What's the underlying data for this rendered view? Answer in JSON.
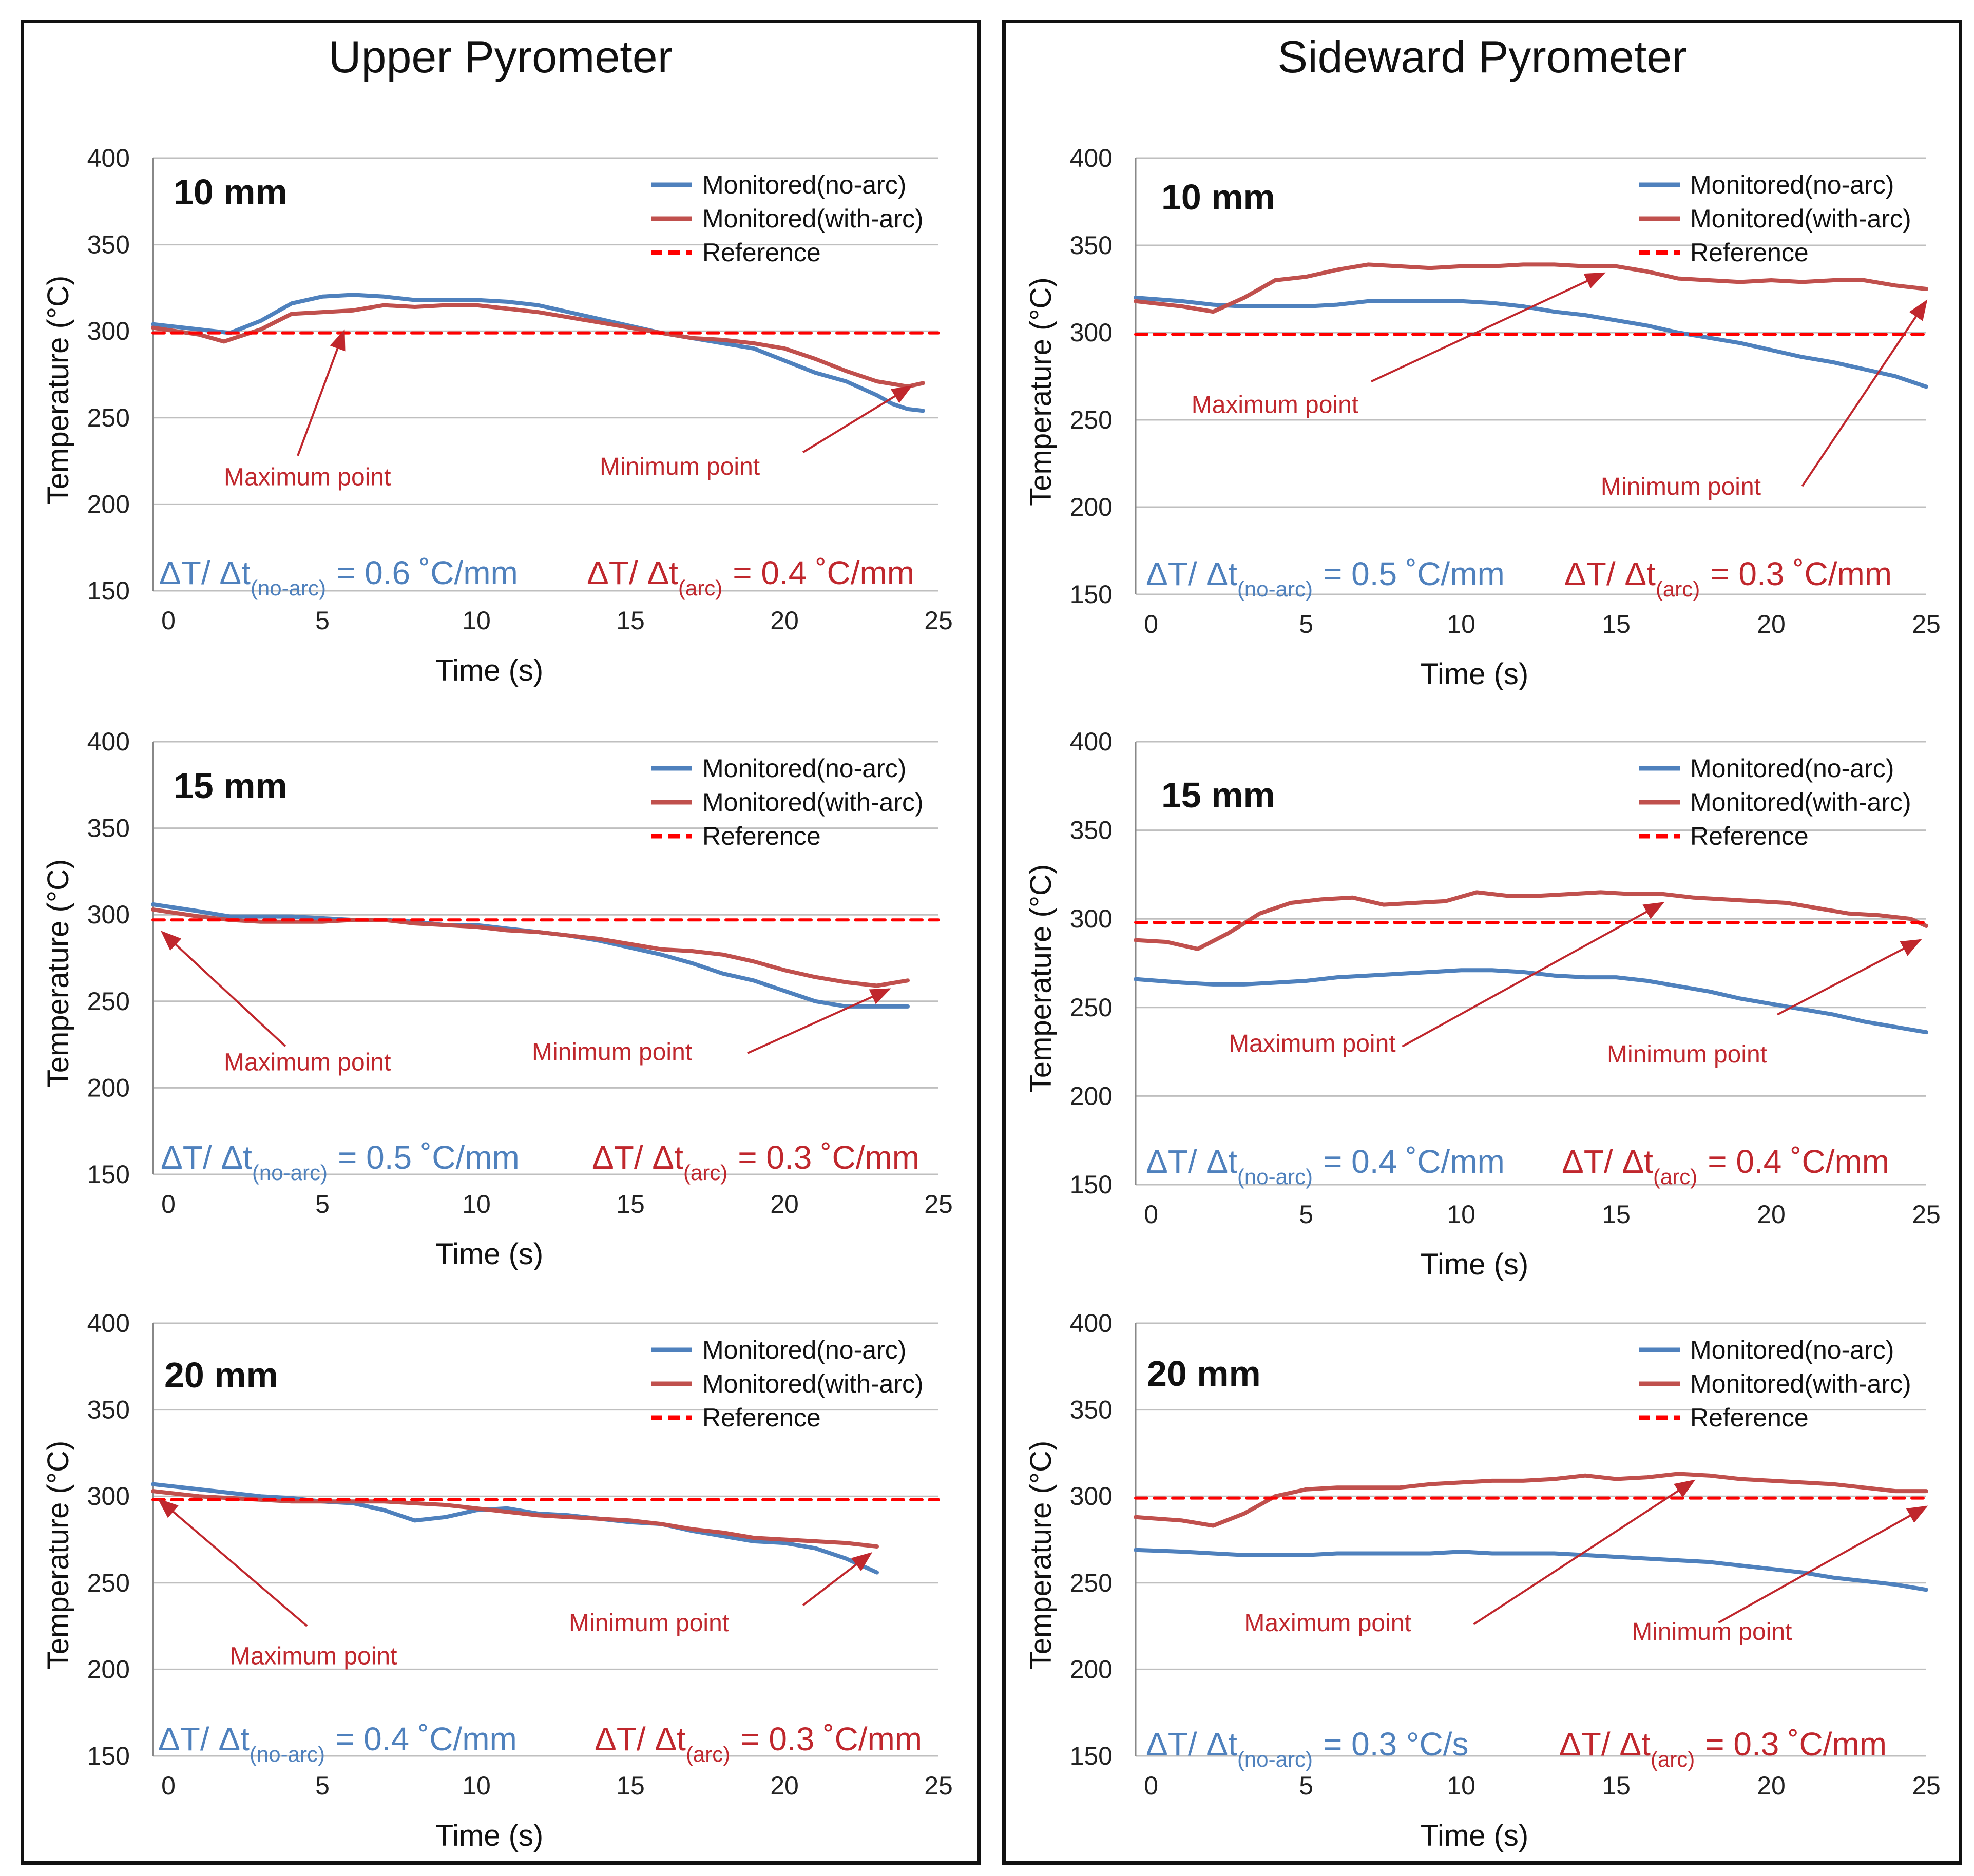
{
  "colors": {
    "no_arc": "#4f81bd",
    "with_arc": "#c0504d",
    "reference": "#ff0000",
    "annotation": "#c0272d",
    "grid": "#bfbfbf"
  },
  "panel_titles": {
    "left": "Upper Pyrometer",
    "right": "Sideward Pyrometer"
  },
  "legend": {
    "no_arc": "Monitored(no-arc)",
    "with_arc": "Monitored(with-arc)",
    "reference": "Reference"
  },
  "annotations": {
    "max": "Maximum point",
    "min": "Minimum point"
  },
  "gradient": {
    "no_arc_prefix": "ΔT/ Δt",
    "no_arc_sub": "(no-arc)",
    "arc_prefix": "ΔT/ Δt",
    "arc_sub": "(arc)"
  },
  "chart_data": [
    {
      "type": "line",
      "panel": "Upper Pyrometer",
      "title": "10 mm",
      "xlabel": "Time (s)",
      "ylabel": "Temperature (°C)",
      "xlim": [
        -0.5,
        25
      ],
      "ylim": [
        150,
        400
      ],
      "x_ticks": [
        0,
        5,
        10,
        15,
        20,
        25
      ],
      "y_ticks": [
        150,
        200,
        250,
        300,
        350,
        400
      ],
      "grid": true,
      "legend_position": "top-right",
      "gradient_no_arc_value": "= 0.6 ˚C/mm",
      "gradient_arc_value": "= 0.4 ˚C/mm",
      "series": [
        {
          "name": "Monitored(no-arc)",
          "x": [
            -0.5,
            1,
            2,
            3,
            4,
            5,
            6,
            7,
            8,
            9,
            10,
            11,
            12,
            13,
            14,
            15,
            16,
            17,
            18,
            19,
            20,
            21,
            22,
            23,
            23.5,
            24,
            24.5
          ],
          "y": [
            304,
            301,
            299,
            306,
            316,
            320,
            321,
            320,
            318,
            318,
            318,
            317,
            315,
            311,
            307,
            303,
            299,
            296,
            293,
            290,
            283,
            276,
            271,
            263,
            258,
            255,
            254
          ]
        },
        {
          "name": "Monitored(with-arc)",
          "x": [
            -0.5,
            1,
            1.8,
            3,
            4,
            5,
            6,
            7,
            8,
            9,
            10,
            11,
            12,
            13,
            14,
            15,
            16,
            17,
            18,
            19,
            20,
            21,
            22,
            23,
            24,
            24.5
          ],
          "y": [
            302,
            298,
            294,
            301,
            310,
            311,
            312,
            315,
            314,
            315,
            315,
            313,
            311,
            308,
            305,
            302,
            299,
            296,
            295,
            293,
            290,
            284,
            277,
            271,
            268,
            270
          ]
        },
        {
          "name": "Reference",
          "x": [
            -0.5,
            25
          ],
          "y": [
            299,
            299
          ]
        }
      ]
    },
    {
      "type": "line",
      "panel": "Upper Pyrometer",
      "title": "15 mm",
      "xlabel": "Time (s)",
      "ylabel": "Temperature (°C)",
      "xlim": [
        -0.5,
        25
      ],
      "ylim": [
        150,
        400
      ],
      "x_ticks": [
        0,
        5,
        10,
        15,
        20,
        25
      ],
      "y_ticks": [
        150,
        200,
        250,
        300,
        350,
        400
      ],
      "grid": true,
      "legend_position": "top-right",
      "gradient_no_arc_value": "= 0.5 ˚C/mm",
      "gradient_arc_value": "= 0.3 ˚C/mm",
      "series": [
        {
          "name": "Monitored(no-arc)",
          "x": [
            -0.5,
            1,
            2,
            3,
            4,
            5,
            6,
            7,
            8,
            9,
            10,
            11,
            12,
            13,
            14,
            15,
            16,
            17,
            18,
            19,
            20,
            21,
            22,
            23,
            24
          ],
          "y": [
            306,
            302,
            299,
            299,
            299,
            298,
            297,
            297,
            296,
            294,
            294,
            292,
            290,
            288,
            285,
            281,
            277,
            272,
            266,
            262,
            256,
            250,
            247,
            247,
            247
          ]
        },
        {
          "name": "Monitored(with-arc)",
          "x": [
            -0.5,
            1,
            2,
            3,
            4,
            5,
            6,
            7,
            8,
            9,
            10,
            11,
            12,
            13,
            14,
            15,
            16,
            17,
            18,
            19,
            20,
            21,
            22,
            23,
            24
          ],
          "y": [
            303,
            299,
            297,
            296,
            296,
            296,
            297,
            297,
            295,
            294,
            293,
            291,
            290,
            288,
            286,
            283,
            280,
            279,
            277,
            273,
            268,
            264,
            261,
            259,
            262
          ]
        },
        {
          "name": "Reference",
          "x": [
            -0.5,
            25
          ],
          "y": [
            297,
            297
          ]
        }
      ]
    },
    {
      "type": "line",
      "panel": "Upper Pyrometer",
      "title": "20 mm",
      "xlabel": "Time (s)",
      "ylabel": "Temperature (°C)",
      "xlim": [
        -0.5,
        25
      ],
      "ylim": [
        150,
        400
      ],
      "x_ticks": [
        0,
        5,
        10,
        15,
        20,
        25
      ],
      "y_ticks": [
        150,
        200,
        250,
        300,
        350,
        400
      ],
      "grid": true,
      "legend_position": "top-right",
      "gradient_no_arc_value": "= 0.4 ˚C/mm",
      "gradient_arc_value": "= 0.3 ˚C/mm",
      "series": [
        {
          "name": "Monitored(no-arc)",
          "x": [
            -0.5,
            1,
            2,
            3,
            4,
            5,
            6,
            7,
            8,
            9,
            10,
            11,
            12,
            13,
            14,
            15,
            16,
            17,
            18,
            19,
            20,
            21,
            22,
            23
          ],
          "y": [
            307,
            304,
            302,
            300,
            299,
            297,
            296,
            292,
            286,
            288,
            292,
            293,
            290,
            289,
            287,
            285,
            284,
            280,
            277,
            274,
            273,
            270,
            264,
            256
          ]
        },
        {
          "name": "Monitored(with-arc)",
          "x": [
            -0.5,
            1,
            2,
            3,
            4,
            5,
            6,
            7,
            8,
            9,
            10,
            11,
            12,
            13,
            14,
            15,
            16,
            17,
            18,
            19,
            20,
            21,
            22,
            23
          ],
          "y": [
            303,
            300,
            299,
            298,
            297,
            297,
            297,
            297,
            296,
            295,
            293,
            291,
            289,
            288,
            287,
            286,
            284,
            281,
            279,
            276,
            275,
            274,
            273,
            271
          ]
        },
        {
          "name": "Reference",
          "x": [
            -0.5,
            25
          ],
          "y": [
            298,
            298
          ]
        }
      ]
    },
    {
      "type": "line",
      "panel": "Sideward Pyrometer",
      "title": "10 mm",
      "xlabel": "Time (s)",
      "ylabel": "Temperature (°C)",
      "xlim": [
        -0.5,
        25
      ],
      "ylim": [
        150,
        400
      ],
      "x_ticks": [
        0,
        5,
        10,
        15,
        20,
        25
      ],
      "y_ticks": [
        150,
        200,
        250,
        300,
        350,
        400
      ],
      "grid": true,
      "legend_position": "top-right",
      "gradient_no_arc_value": "= 0.5 ˚C/mm",
      "gradient_arc_value": "= 0.3 ˚C/mm",
      "series": [
        {
          "name": "Monitored(no-arc)",
          "x": [
            -0.5,
            1,
            2,
            3,
            4,
            5,
            6,
            7,
            8,
            9,
            10,
            11,
            12,
            13,
            14,
            15,
            16,
            17,
            18,
            19,
            20,
            21,
            22,
            23,
            24,
            25
          ],
          "y": [
            320,
            318,
            316,
            315,
            315,
            315,
            316,
            318,
            318,
            318,
            318,
            317,
            315,
            312,
            310,
            307,
            304,
            300,
            297,
            294,
            290,
            286,
            283,
            279,
            275,
            269
          ]
        },
        {
          "name": "Monitored(with-arc)",
          "x": [
            -0.5,
            1,
            2,
            3,
            4,
            5,
            6,
            7,
            8,
            9,
            10,
            11,
            12,
            13,
            14,
            15,
            16,
            17,
            18,
            19,
            20,
            21,
            22,
            23,
            24,
            25
          ],
          "y": [
            318,
            315,
            312,
            320,
            330,
            332,
            336,
            339,
            338,
            337,
            338,
            338,
            339,
            339,
            338,
            338,
            335,
            331,
            330,
            329,
            330,
            329,
            330,
            330,
            327,
            325
          ]
        },
        {
          "name": "Reference",
          "x": [
            -0.5,
            25
          ],
          "y": [
            299,
            299
          ]
        }
      ]
    },
    {
      "type": "line",
      "panel": "Sideward Pyrometer",
      "title": "15 mm",
      "xlabel": "Time (s)",
      "ylabel": "Temperature (°C)",
      "xlim": [
        -0.5,
        25
      ],
      "ylim": [
        150,
        400
      ],
      "x_ticks": [
        0,
        5,
        10,
        15,
        20,
        25
      ],
      "y_ticks": [
        150,
        200,
        250,
        300,
        350,
        400
      ],
      "grid": true,
      "legend_position": "top-right",
      "gradient_no_arc_value": "= 0.4 ˚C/mm",
      "gradient_arc_value": "= 0.4 ˚C/mm",
      "series": [
        {
          "name": "Monitored(no-arc)",
          "x": [
            -0.5,
            1,
            2,
            3,
            4,
            5,
            6,
            7,
            8,
            9,
            10,
            11,
            12,
            13,
            14,
            15,
            16,
            17,
            18,
            19,
            20,
            21,
            22,
            23,
            24,
            25
          ],
          "y": [
            266,
            264,
            263,
            263,
            264,
            265,
            267,
            268,
            269,
            270,
            271,
            271,
            270,
            268,
            267,
            267,
            265,
            262,
            259,
            255,
            252,
            249,
            246,
            242,
            239,
            236
          ]
        },
        {
          "name": "Monitored(with-arc)",
          "x": [
            -0.5,
            0.5,
            1.5,
            2.5,
            3.5,
            4.5,
            5.5,
            6.5,
            7.5,
            8.5,
            9.5,
            10.5,
            11.5,
            12.5,
            13.5,
            14.5,
            15.5,
            16.5,
            17.5,
            18.5,
            19.5,
            20.5,
            21.5,
            22.5,
            23.5,
            24.5,
            25
          ],
          "y": [
            288,
            287,
            283,
            292,
            303,
            309,
            311,
            312,
            308,
            309,
            310,
            315,
            313,
            313,
            314,
            315,
            314,
            314,
            312,
            311,
            310,
            309,
            306,
            303,
            302,
            300,
            296
          ]
        },
        {
          "name": "Reference",
          "x": [
            -0.5,
            25
          ],
          "y": [
            298,
            298
          ]
        }
      ]
    },
    {
      "type": "line",
      "panel": "Sideward Pyrometer",
      "title": "20 mm",
      "xlabel": "Time (s)",
      "ylabel": "Temperature (°C)",
      "xlim": [
        -0.5,
        25
      ],
      "ylim": [
        150,
        400
      ],
      "x_ticks": [
        0,
        5,
        10,
        15,
        20,
        25
      ],
      "y_ticks": [
        150,
        200,
        250,
        300,
        350,
        400
      ],
      "grid": true,
      "legend_position": "top-right",
      "gradient_no_arc_value": "= 0.3 °C/s",
      "gradient_arc_value": "= 0.3 ˚C/mm",
      "series": [
        {
          "name": "Monitored(no-arc)",
          "x": [
            -0.5,
            1,
            2,
            3,
            4,
            5,
            6,
            7,
            8,
            9,
            10,
            11,
            12,
            13,
            14,
            15,
            16,
            17,
            18,
            19,
            20,
            21,
            22,
            23,
            24,
            25
          ],
          "y": [
            269,
            268,
            267,
            266,
            266,
            266,
            267,
            267,
            267,
            267,
            268,
            267,
            267,
            267,
            266,
            265,
            264,
            263,
            262,
            260,
            258,
            256,
            253,
            251,
            249,
            246
          ]
        },
        {
          "name": "Monitored(with-arc)",
          "x": [
            -0.5,
            1,
            2,
            3,
            4,
            5,
            6,
            7,
            8,
            9,
            10,
            11,
            12,
            13,
            14,
            15,
            16,
            17,
            18,
            19,
            20,
            21,
            22,
            23,
            24,
            25
          ],
          "y": [
            288,
            286,
            283,
            290,
            300,
            304,
            305,
            305,
            305,
            307,
            308,
            309,
            309,
            310,
            312,
            310,
            311,
            313,
            312,
            310,
            309,
            308,
            307,
            305,
            303,
            303
          ]
        },
        {
          "name": "Reference",
          "x": [
            -0.5,
            25
          ],
          "y": [
            299,
            299
          ]
        }
      ]
    }
  ]
}
